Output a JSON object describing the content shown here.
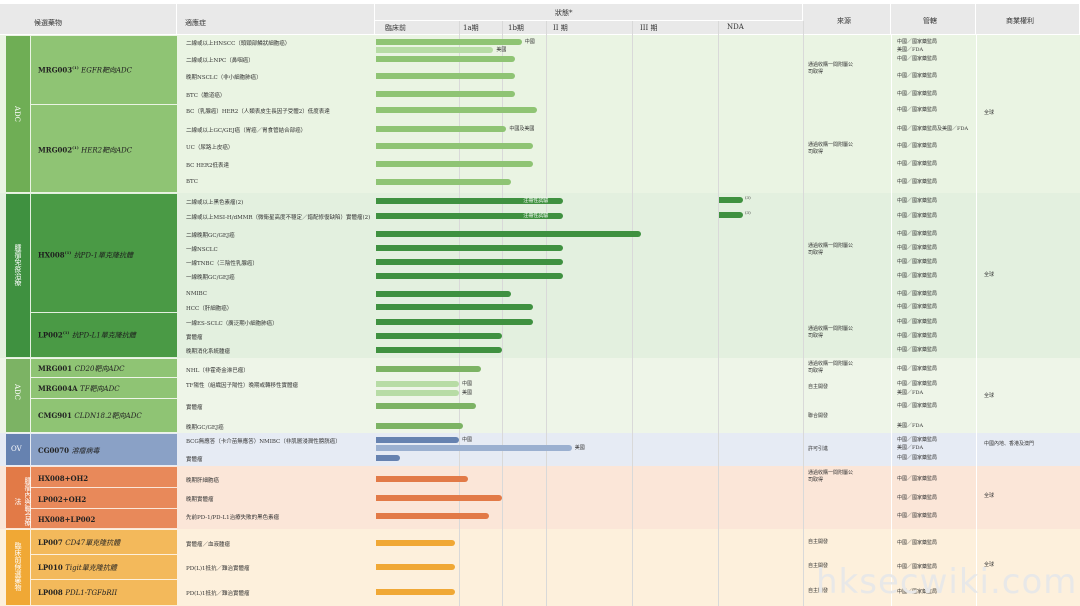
{
  "header": {
    "candidate": "候選藥物",
    "indication": "適應症",
    "status": "狀態*",
    "preclinical": "臨床前",
    "p1a": "1a期",
    "p1b": "1b期",
    "p2": "II 期",
    "p3": "III 期",
    "nda": "NDA",
    "source": "來源",
    "jurisdiction": "管轄",
    "rights": "商業權利"
  },
  "colors": {
    "adc_light": "#8fc474",
    "adc_dark": "#6fae55",
    "imm": "#3f9140",
    "adc2": "#7cb364",
    "ov": "#6682b0",
    "combo": "#e27a47",
    "prec": "#f0a835"
  },
  "categories": [
    {
      "label": "ADC",
      "color": "#6fae55"
    },
    {
      "label": "腫瘤免疫治療",
      "color": "#3f9140"
    },
    {
      "label": "ADC",
      "color": "#7cb364"
    },
    {
      "label": "OV",
      "color": "#6682b0"
    },
    {
      "label": "腫瘤內與聯合療法",
      "color": "#e27a47"
    },
    {
      "label": "臨床前候選藥物",
      "color": "#f0a835"
    }
  ],
  "drugs": [
    {
      "name": "MRG003",
      "sup": "(1)",
      "target": "EGFR靶向ADC"
    },
    {
      "name": "MRG002",
      "sup": "(1)",
      "target": "HER2靶向ADC"
    },
    {
      "name": "HX008",
      "sup": "(1)",
      "target": "抗PD-1單克隆抗體"
    },
    {
      "name": "LP002",
      "sup": "(1)",
      "target": "抗PD-L1單克隆抗體"
    },
    {
      "name": "MRG001",
      "sup": "",
      "target": "CD20靶向ADC"
    },
    {
      "name": "MRG004A",
      "sup": "",
      "target": "TF靶向ADC"
    },
    {
      "name": "CMG901",
      "sup": "",
      "target": "CLDN18.2靶向ADC"
    },
    {
      "name": "CG0070",
      "sup": "",
      "target": "溶瘤病毒"
    },
    {
      "name": "HX008+OH2",
      "sup": "",
      "target": ""
    },
    {
      "name": "LP002+OH2",
      "sup": "",
      "target": ""
    },
    {
      "name": "HX008+LP002",
      "sup": "",
      "target": ""
    },
    {
      "name": "LP007",
      "sup": "",
      "target": "CD47單克隆抗體"
    },
    {
      "name": "LP010",
      "sup": "",
      "target": "Tigit單克隆抗體"
    },
    {
      "name": "LP008",
      "sup": "",
      "target": "PDL1-TGFbRII"
    }
  ],
  "rows": [
    {
      "ind": "二線或以上HNSCC（頭頸部鱗狀細胞癌）",
      "stage": 2.45,
      "color": "#8fc474",
      "label": "中國",
      "juris": "中國／國家藥監局"
    },
    {
      "ind": "",
      "stage": 1.8,
      "color": "#b7dca5",
      "label": "美國",
      "juris": "美國／FDA"
    },
    {
      "ind": "二線或以上NPC（鼻咽癌）",
      "stage": 2.3,
      "color": "#8fc474",
      "label": "",
      "juris": "中國／國家藥監局"
    },
    {
      "ind": "晚期NSCLC（非小細胞肺癌）",
      "stage": 2.3,
      "color": "#8fc474",
      "label": "",
      "juris": "中國／國家藥監局"
    },
    {
      "ind": "BTC（膽道癌）",
      "stage": 2.3,
      "color": "#8fc474",
      "label": "",
      "juris": "中國／國家藥監局"
    },
    {
      "ind": "BC（乳腺癌）HER2（人類表皮生長因子受體2）低度表達",
      "stage": 2.8,
      "color": "#8fc474",
      "label": "",
      "juris": "中國／國家藥監局"
    },
    {
      "ind": "二線或以上GC/GEJ癌（胃癌／胃食管結合部癌）",
      "stage": 2.1,
      "color": "#8fc474",
      "label": "中國及美國",
      "juris": "中國／國家藥監局及美國／FDA"
    },
    {
      "ind": "UC（尿路上皮癌）",
      "stage": 2.7,
      "color": "#8fc474",
      "label": "",
      "juris": "中國／國家藥監局"
    },
    {
      "ind": "BC HER2低表達",
      "stage": 2.7,
      "color": "#8fc474",
      "label": "",
      "juris": "中國／國家藥監局"
    },
    {
      "ind": "BTC",
      "stage": 2.2,
      "color": "#8fc474",
      "label": "",
      "juris": "中國／國家藥監局"
    },
    {
      "ind": "二線或以上黑色素瘤(2)",
      "stage": 3.2,
      "color": "#3f9140",
      "label": "注冊性試驗",
      "juris": "中國／國家藥監局"
    },
    {
      "ind": "二線或以上MSI-H/dMMR（微衛星高度不穩定／錯配修復缺陷）實體瘤(2)",
      "stage": 3.2,
      "color": "#3f9140",
      "label": "注冊性試驗",
      "juris": "中國／國家藥監局"
    },
    {
      "ind": "二線晚期GC/GEJ癌",
      "stage": 4.1,
      "color": "#3f9140",
      "label": "",
      "juris": "中國／國家藥監局"
    },
    {
      "ind": "一線NSCLC",
      "stage": 3.2,
      "color": "#3f9140",
      "label": "",
      "juris": "中國／國家藥監局"
    },
    {
      "ind": "一線TNBC（三陰性乳腺癌）",
      "stage": 3.2,
      "color": "#3f9140",
      "label": "",
      "juris": "中國／國家藥監局"
    },
    {
      "ind": "一線晚期GC/GEJ癌",
      "stage": 3.2,
      "color": "#3f9140",
      "label": "",
      "juris": "中國／國家藥監局"
    },
    {
      "ind": "NMIBC",
      "stage": 2.2,
      "color": "#3f9140",
      "label": "",
      "juris": "中國／國家藥監局"
    },
    {
      "ind": "HCC（肝細胞癌）",
      "stage": 2.7,
      "color": "#3f9140",
      "label": "",
      "juris": "中國／國家藥監局"
    },
    {
      "ind": "一線ES-SCLC（廣泛期小細胞肺癌）",
      "stage": 2.7,
      "color": "#3f9140",
      "label": "",
      "juris": "中國／國家藥監局"
    },
    {
      "ind": "實體瘤",
      "stage": 2.0,
      "color": "#3f9140",
      "label": "",
      "juris": "中國／國家藥監局"
    },
    {
      "ind": "晚期消化系統腫瘤",
      "stage": 2.0,
      "color": "#3f9140",
      "label": "",
      "juris": "中國／國家藥監局"
    },
    {
      "ind": "NHL（非霍奇金淋巴瘤）",
      "stage": 1.5,
      "color": "#7cb364",
      "label": "",
      "juris": "中國／國家藥監局"
    },
    {
      "ind": "TF陽性（組織因子陽性）晚期或轉移性實體瘤",
      "stage": 1.0,
      "color": "#b7dca5",
      "label": "中國",
      "juris": "中國／國家藥監局"
    },
    {
      "ind": "",
      "stage": 1.0,
      "color": "#b7dca5",
      "label": "美國",
      "juris": "美國／FDA"
    },
    {
      "ind": "實體瘤",
      "stage": 1.4,
      "color": "#7cb364",
      "label": "",
      "juris": "中國／國家藥監局"
    },
    {
      "ind": "晚期GC/GEJ癌",
      "stage": 1.1,
      "color": "#7cb364",
      "label": "",
      "juris": "美國／FDA"
    },
    {
      "ind": "BCG無應答（卡介苗無應答）NMIBC（非肌層浸潤性膀胱癌）",
      "stage": 1.0,
      "color": "#6682b0",
      "label": "中國",
      "juris": "中國／國家藥監局"
    },
    {
      "ind": "",
      "stage": 3.3,
      "color": "#9bb0d0",
      "label": "美國",
      "juris": "美國／FDA"
    },
    {
      "ind": "實體瘤",
      "stage": 0.3,
      "color": "#6682b0",
      "label": "",
      "juris": "中國／國家藥監局"
    },
    {
      "ind": "晚期肝細胞癌",
      "stage": 1.2,
      "color": "#e27a47",
      "label": "",
      "juris": "中國／國家藥監局"
    },
    {
      "ind": "晚期實體瘤",
      "stage": 2.0,
      "color": "#e27a47",
      "label": "",
      "juris": "中國／國家藥監局"
    },
    {
      "ind": "先前PD-1/PD-L1治療失敗的黑色素瘤",
      "stage": 1.7,
      "color": "#e27a47",
      "label": "",
      "juris": "中國／國家藥監局"
    },
    {
      "ind": "實體瘤／血液腫瘤",
      "stage": 0.95,
      "color": "#f0a835",
      "label": "",
      "juris": "中國／國家藥監局"
    },
    {
      "ind": "PD(L)1抵抗／難治實體瘤",
      "stage": 0.95,
      "color": "#f0a835",
      "label": "",
      "juris": "中國／國家藥監局"
    },
    {
      "ind": "PD(L)1抵抗／難治實體瘤",
      "stage": 0.95,
      "color": "#f0a835",
      "label": "",
      "juris": "中國／國家藥監局"
    }
  ],
  "sources": [
    {
      "text": "通過收購一間附屬公司取得"
    },
    {
      "text": "通過收購一間附屬公司取得"
    },
    {
      "text": "通過收購一間附屬公司取得"
    },
    {
      "text": "通過收購一間附屬公司取得"
    },
    {
      "text": "通過收購一間附屬公司取得"
    },
    {
      "text": "自主開發"
    },
    {
      "text": "聯合開發"
    },
    {
      "text": "許可引進"
    },
    {
      "text": "通過收購一間附屬公司取得"
    },
    {
      "text": "自主開發"
    },
    {
      "text": "自主開發"
    },
    {
      "text": "自主開發"
    }
  ],
  "rights": [
    {
      "text": "全球"
    },
    {
      "text": "全球"
    },
    {
      "text": "全球"
    },
    {
      "text": "中國內地、香港及澳門"
    },
    {
      "text": "全球"
    },
    {
      "text": "全球"
    }
  ],
  "notes": {
    "star1": "(3)",
    "star2": "(3)"
  },
  "watermark": "hksecwiki.com"
}
